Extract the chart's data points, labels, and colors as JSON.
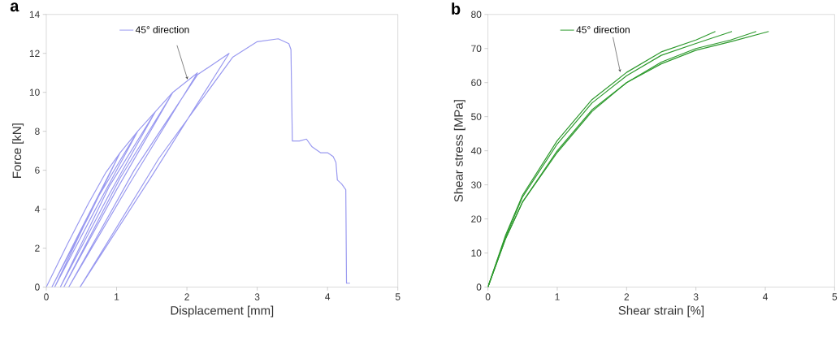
{
  "chart_data": [
    {
      "type": "line",
      "title": "**a**",
      "xlabel": "Displacement [mm]",
      "ylabel": "Force [kN]",
      "xlim": [
        0,
        5
      ],
      "ylim": [
        0,
        14
      ],
      "xticks": [
        0,
        1,
        2,
        3,
        4,
        5
      ],
      "yticks": [
        0,
        2,
        4,
        6,
        8,
        10,
        12,
        14
      ],
      "legend": "top",
      "grid": false,
      "series": [
        {
          "name": "45° direction",
          "color": "#9a9af0",
          "x": [
            0,
            0.3,
            0.6,
            0.85,
            1.05,
            0.6,
            0.08,
            0.5,
            1.05,
            1.3,
            0.7,
            0.12,
            0.7,
            1.3,
            1.55,
            0.9,
            0.2,
            0.9,
            1.55,
            1.8,
            1.0,
            0.25,
            1.05,
            1.8,
            2.15,
            1.2,
            0.32,
            1.25,
            2.15,
            2.6,
            1.5,
            0.48,
            1.6,
            2.65,
            3.0,
            3.3,
            3.45,
            3.48,
            3.5,
            3.6,
            3.7,
            3.78,
            3.9,
            4.0,
            4.08,
            4.12,
            4.14,
            4.2,
            4.26,
            4.27,
            4.32
          ],
          "values": [
            0,
            2.2,
            4.3,
            5.9,
            6.9,
            3.6,
            0,
            3.0,
            6.9,
            8.0,
            4.0,
            0,
            4.4,
            8.0,
            9.0,
            4.8,
            0,
            5.2,
            9.0,
            10.0,
            5.0,
            0,
            5.6,
            10.0,
            11.0,
            5.4,
            0,
            6.0,
            10.9,
            12.0,
            5.7,
            0,
            6.6,
            11.8,
            12.6,
            12.75,
            12.5,
            12.2,
            7.5,
            7.5,
            7.6,
            7.2,
            6.9,
            6.9,
            6.7,
            6.4,
            5.5,
            5.3,
            5.0,
            0.2,
            0.2
          ]
        }
      ]
    },
    {
      "type": "line",
      "title": "**b**",
      "xlabel": "Shear strain [%]",
      "ylabel": "Shear stress  [MPa]",
      "xlim": [
        0,
        5
      ],
      "ylim": [
        0,
        80
      ],
      "xticks": [
        0,
        1,
        2,
        3,
        4,
        5
      ],
      "yticks": [
        0,
        10,
        20,
        30,
        40,
        50,
        60,
        70,
        80
      ],
      "legend": "top",
      "grid": false,
      "series": [
        {
          "name": "45° direction",
          "color": "#2e9a2e",
          "x": [
            0,
            0.25,
            0.5,
            1,
            1.5,
            2,
            2.5,
            3,
            3.28
          ],
          "values": [
            0,
            15,
            27,
            43,
            55,
            63,
            69,
            72.5,
            75
          ]
        },
        {
          "color": "#2e9a2e",
          "x": [
            0,
            0.25,
            0.5,
            1,
            1.5,
            2,
            2.5,
            3,
            3.52
          ],
          "values": [
            0,
            14.5,
            26.5,
            42,
            54,
            62,
            68,
            71.5,
            75
          ]
        },
        {
          "color": "#2e9a2e",
          "x": [
            0,
            0.25,
            0.5,
            1,
            1.5,
            2,
            2.5,
            3,
            3.5,
            3.87
          ],
          "values": [
            0,
            14,
            25,
            40,
            52,
            60,
            66,
            70,
            72.5,
            75
          ]
        },
        {
          "color": "#2e9a2e",
          "x": [
            0,
            0.25,
            0.5,
            1,
            1.5,
            2,
            2.5,
            3,
            3.5,
            4.05
          ],
          "values": [
            0,
            14,
            25,
            39.5,
            51.5,
            60,
            65.5,
            69.5,
            72,
            75
          ]
        }
      ]
    }
  ]
}
